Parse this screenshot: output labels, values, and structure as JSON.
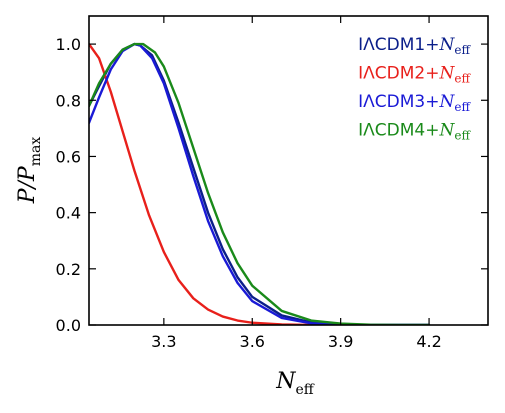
{
  "chart_data": {
    "type": "line",
    "xlabel": "N_eff",
    "ylabel": "P/P_max",
    "xlim": [
      3.046,
      4.4
    ],
    "ylim": [
      0.0,
      1.1
    ],
    "xticks": [
      3.3,
      3.6,
      3.9,
      4.2
    ],
    "xtick_labels": [
      "3.3",
      "3.6",
      "3.9",
      "4.2"
    ],
    "yticks": [
      0.0,
      0.2,
      0.4,
      0.6,
      0.8,
      1.0
    ],
    "ytick_labels": [
      "0.0",
      "0.2",
      "0.4",
      "0.6",
      "0.8",
      "1.0"
    ],
    "grid": false,
    "legend_position": "top-right",
    "series": [
      {
        "name": "IΛCDM1+N_eff",
        "label_main": "IΛCDM1+",
        "label_var": "N",
        "label_sub": "eff",
        "color": "#0b1f8a",
        "x": [
          3.046,
          3.08,
          3.12,
          3.16,
          3.2,
          3.22,
          3.26,
          3.3,
          3.35,
          3.4,
          3.45,
          3.5,
          3.55,
          3.6,
          3.7,
          3.8,
          3.9,
          4.0,
          4.1,
          4.2
        ],
        "y": [
          0.78,
          0.85,
          0.93,
          0.98,
          1.0,
          0.995,
          0.96,
          0.87,
          0.72,
          0.56,
          0.4,
          0.27,
          0.17,
          0.1,
          0.034,
          0.009,
          0.002,
          0.0004,
          0.0001,
          0.0
        ]
      },
      {
        "name": "IΛCDM2+N_eff",
        "label_main": "IΛCDM2+",
        "label_var": "N",
        "label_sub": "eff",
        "color": "#e8201b",
        "x": [
          3.046,
          3.08,
          3.12,
          3.16,
          3.2,
          3.25,
          3.3,
          3.35,
          3.4,
          3.45,
          3.5,
          3.55,
          3.6,
          3.7,
          3.8,
          3.9,
          4.0
        ],
        "y": [
          1.0,
          0.95,
          0.83,
          0.69,
          0.55,
          0.39,
          0.26,
          0.16,
          0.095,
          0.055,
          0.03,
          0.016,
          0.008,
          0.0018,
          0.0003,
          0.0,
          0.0
        ]
      },
      {
        "name": "IΛCDM3+N_eff",
        "label_main": "IΛCDM3+",
        "label_var": "N",
        "label_sub": "eff",
        "color": "#1a1ad6",
        "x": [
          3.046,
          3.08,
          3.12,
          3.16,
          3.2,
          3.22,
          3.26,
          3.3,
          3.35,
          3.4,
          3.45,
          3.5,
          3.55,
          3.6,
          3.7,
          3.8,
          3.9,
          4.0,
          4.1,
          4.2
        ],
        "y": [
          0.72,
          0.81,
          0.91,
          0.975,
          1.0,
          0.995,
          0.95,
          0.86,
          0.7,
          0.53,
          0.37,
          0.245,
          0.15,
          0.085,
          0.025,
          0.006,
          0.0012,
          0.0002,
          0.0,
          0.0
        ]
      },
      {
        "name": "IΛCDM4+N_eff",
        "label_main": "IΛCDM4+",
        "label_var": "N",
        "label_sub": "eff",
        "color": "#1a8a1a",
        "x": [
          3.046,
          3.08,
          3.12,
          3.16,
          3.2,
          3.23,
          3.27,
          3.3,
          3.35,
          3.4,
          3.45,
          3.5,
          3.55,
          3.6,
          3.7,
          3.8,
          3.9,
          4.0,
          4.1,
          4.2
        ],
        "y": [
          0.78,
          0.86,
          0.93,
          0.98,
          1.0,
          1.0,
          0.97,
          0.92,
          0.79,
          0.63,
          0.47,
          0.33,
          0.22,
          0.14,
          0.05,
          0.016,
          0.005,
          0.0012,
          0.0002,
          0.0
        ]
      }
    ]
  }
}
